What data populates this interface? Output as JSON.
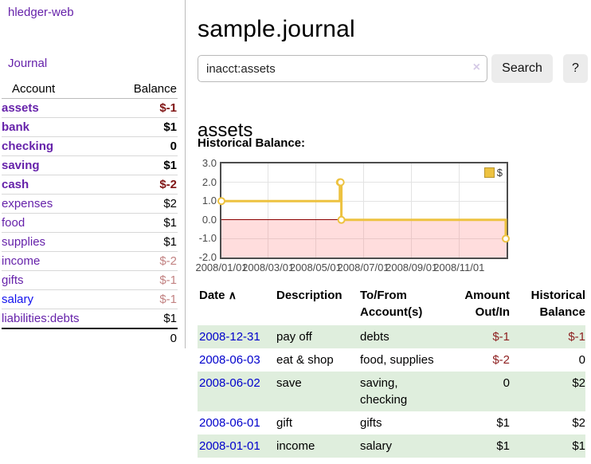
{
  "brand": "hledger-web",
  "nav": {
    "journal": "Journal"
  },
  "sidebar": {
    "headers": {
      "account": "Account",
      "balance": "Balance"
    },
    "accounts": [
      {
        "name": "assets",
        "balance": "$-1"
      },
      {
        "name": "bank",
        "balance": "$1"
      },
      {
        "name": "checking",
        "balance": "0"
      },
      {
        "name": "saving",
        "balance": "$1"
      },
      {
        "name": "cash",
        "balance": "$-2"
      },
      {
        "name": "expenses",
        "balance": "$2"
      },
      {
        "name": "food",
        "balance": "$1"
      },
      {
        "name": "supplies",
        "balance": "$1"
      },
      {
        "name": "income",
        "balance": "$-2"
      },
      {
        "name": "gifts",
        "balance": "$-1"
      },
      {
        "name": "salary",
        "balance": "$-1"
      },
      {
        "name": "liabilities:debts",
        "balance": "$1"
      }
    ],
    "total": "0"
  },
  "main": {
    "title": "sample.journal",
    "search": {
      "value": "inacct:assets",
      "clear_icon": "×",
      "search_button": "Search",
      "help_button": "?"
    },
    "heading": "assets",
    "chart_title": "Historical Balance:"
  },
  "chart_data": {
    "type": "line",
    "step": true,
    "title": "Historical Balance",
    "series": [
      {
        "name": "$",
        "color": "#EDC240",
        "points": [
          [
            "2008-01-01",
            1
          ],
          [
            "2008-06-01",
            2
          ],
          [
            "2008-06-02",
            2
          ],
          [
            "2008-06-03",
            0
          ],
          [
            "2008-12-31",
            -1
          ]
        ]
      }
    ],
    "xrange": [
      "2008-01-01",
      "2009-01-01"
    ],
    "ylim": [
      -2,
      3
    ],
    "yticks": [
      3,
      2,
      1,
      0,
      -1,
      -2
    ],
    "ytick_labels": [
      "3.0",
      "2.0",
      "1.0",
      "0.0",
      "-1.0",
      "-2.0"
    ],
    "xticks": [
      {
        "date": "2008-01-01",
        "label": "2008/01/01"
      },
      {
        "date": "2008-03-01",
        "label": "2008/03/01"
      },
      {
        "date": "2008-05-01",
        "label": "2008/05/01"
      },
      {
        "date": "2008-07-01",
        "label": "2008/07/01"
      },
      {
        "date": "2008-09-01",
        "label": "2008/09/01"
      },
      {
        "date": "2008-11-01",
        "label": "2008/11/01"
      }
    ],
    "legend": {
      "label": "$",
      "position": "top-right"
    },
    "grid": true,
    "negative_region": {
      "from": -2,
      "to": 0
    },
    "zero_line_color": "#8b0000"
  },
  "register": {
    "headers": {
      "date": "Date",
      "sort_indicator": "∧",
      "description": "Description",
      "accounts": "To/From Account(s)",
      "amount": "Amount Out/In",
      "balance": "Historical Balance"
    },
    "rows": [
      {
        "date": "2008-12-31",
        "description": "pay off",
        "accounts": "debts",
        "amount": "$-1",
        "balance": "$-1"
      },
      {
        "date": "2008-06-03",
        "description": "eat & shop",
        "accounts": "food, supplies",
        "amount": "$-2",
        "balance": "0"
      },
      {
        "date": "2008-06-02",
        "description": "save",
        "accounts": "saving, checking",
        "amount": "0",
        "balance": "$2"
      },
      {
        "date": "2008-06-01",
        "description": "gift",
        "accounts": "gifts",
        "amount": "$1",
        "balance": "$2"
      },
      {
        "date": "2008-01-01",
        "description": "income",
        "accounts": "salary",
        "amount": "$1",
        "balance": "$1"
      }
    ]
  }
}
